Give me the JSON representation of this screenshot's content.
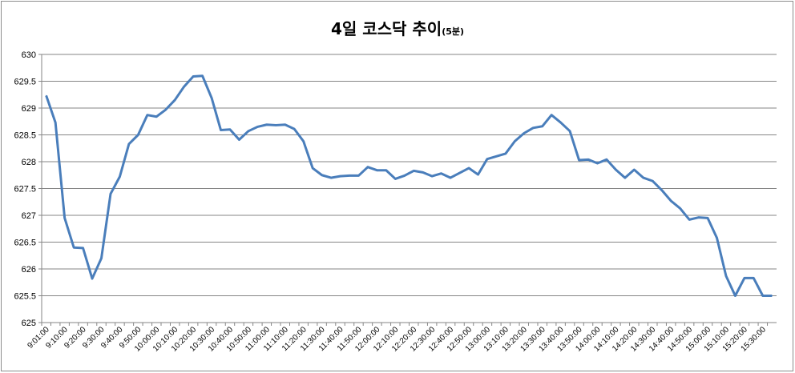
{
  "chart_data": {
    "type": "line",
    "title": "4일 코스닥 추이",
    "subtitle": "(5분)",
    "xlabel": "",
    "ylabel": "",
    "ylim": [
      625,
      630
    ],
    "yticks": [
      "625",
      "625.5",
      "626",
      "626.5",
      "627",
      "627.5",
      "628",
      "628.5",
      "629",
      "629.5",
      "630"
    ],
    "grid": true,
    "legend": "none",
    "line_color": "#4a7ebb",
    "x": [
      "9:01:00",
      "9:05:00",
      "9:10:00",
      "9:15:00",
      "9:20:00",
      "9:25:00",
      "9:30:00",
      "9:35:00",
      "9:40:00",
      "9:45:00",
      "9:50:00",
      "9:55:00",
      "10:00:00",
      "10:05:00",
      "10:10:00",
      "10:15:00",
      "10:20:00",
      "10:25:00",
      "10:30:00",
      "10:35:00",
      "10:40:00",
      "10:45:00",
      "10:50:00",
      "10:55:00",
      "11:00:00",
      "11:05:00",
      "11:10:00",
      "11:15:00",
      "11:20:00",
      "11:25:00",
      "11:30:00",
      "11:35:00",
      "11:40:00",
      "11:45:00",
      "11:50:00",
      "11:55:00",
      "12:00:00",
      "12:05:00",
      "12:10:00",
      "12:15:00",
      "12:20:00",
      "12:25:00",
      "12:30:00",
      "12:35:00",
      "12:40:00",
      "12:45:00",
      "12:50:00",
      "12:55:00",
      "13:00:00",
      "13:05:00",
      "13:10:00",
      "13:15:00",
      "13:20:00",
      "13:25:00",
      "13:30:00",
      "13:35:00",
      "13:40:00",
      "13:45:00",
      "13:50:00",
      "13:55:00",
      "14:00:00",
      "14:05:00",
      "14:10:00",
      "14:15:00",
      "14:20:00",
      "14:25:00",
      "14:30:00",
      "14:35:00",
      "14:40:00",
      "14:45:00",
      "14:50:00",
      "14:55:00",
      "15:00:00",
      "15:05:00",
      "15:10:00",
      "15:15:00",
      "15:20:00",
      "15:25:00",
      "15:30:00",
      "15:35:00"
    ],
    "xtick_labels": [
      "9:01:00",
      "9:10:00",
      "9:20:00",
      "9:30:00",
      "9:40:00",
      "9:50:00",
      "10:00:00",
      "10:10:00",
      "10:20:00",
      "10:30:00",
      "10:40:00",
      "10:50:00",
      "11:00:00",
      "11:10:00",
      "11:20:00",
      "11:30:00",
      "11:40:00",
      "11:50:00",
      "12:00:00",
      "12:10:00",
      "12:20:00",
      "12:30:00",
      "12:40:00",
      "12:50:00",
      "13:00:00",
      "13:10:00",
      "13:20:00",
      "13:30:00",
      "13:40:00",
      "13:50:00",
      "14:00:00",
      "14:10:00",
      "14:20:00",
      "14:30:00",
      "14:40:00",
      "14:50:00",
      "15:00:00",
      "15:10:00",
      "15:20:00",
      "15:30:00"
    ],
    "values": [
      629.23,
      628.73,
      626.95,
      626.4,
      626.39,
      625.82,
      626.2,
      627.4,
      627.72,
      628.33,
      628.5,
      628.87,
      628.84,
      628.97,
      629.15,
      629.4,
      629.59,
      629.6,
      629.19,
      628.59,
      628.6,
      628.41,
      628.57,
      628.65,
      628.69,
      628.68,
      628.69,
      628.61,
      628.38,
      627.88,
      627.75,
      627.7,
      627.73,
      627.74,
      627.74,
      627.9,
      627.84,
      627.84,
      627.68,
      627.74,
      627.83,
      627.8,
      627.73,
      627.78,
      627.7,
      627.79,
      627.88,
      627.76,
      628.05,
      628.1,
      628.15,
      628.38,
      628.53,
      628.63,
      628.66,
      628.87,
      628.73,
      628.57,
      628.03,
      628.04,
      627.97,
      628.04,
      627.85,
      627.7,
      627.85,
      627.7,
      627.64,
      627.47,
      627.27,
      627.13,
      626.92,
      626.96,
      626.95,
      626.58,
      625.87,
      625.5,
      625.83,
      625.83,
      625.5,
      625.5
    ]
  }
}
